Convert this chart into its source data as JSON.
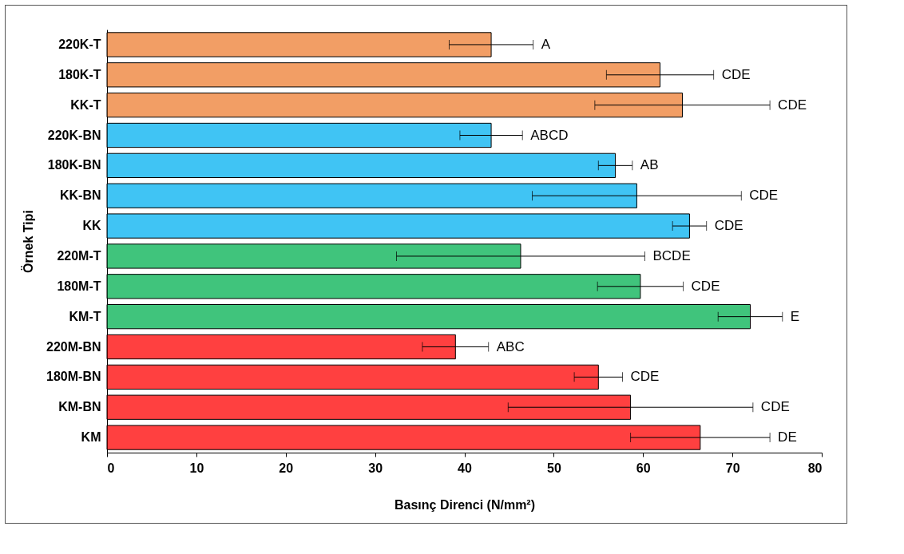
{
  "chart_data": {
    "type": "bar",
    "orientation": "horizontal",
    "xlabel": "Basınç Direnci (N/mm²)",
    "ylabel": "Örnek Tipi",
    "categories": [
      "220K-T",
      "180K-T",
      "KK-T",
      "220K-BN",
      "180K-BN",
      "KK-BN",
      "KK",
      "220M-T",
      "180M-T",
      "KM-T",
      "220M-BN",
      "180M-BN",
      "KM-BN",
      "KM"
    ],
    "values": [
      43.0,
      61.9,
      64.4,
      43.0,
      56.9,
      59.3,
      65.2,
      46.3,
      59.7,
      72.0,
      39.0,
      55.0,
      58.6,
      66.4
    ],
    "errors": [
      4.7,
      6.0,
      9.8,
      3.5,
      1.9,
      11.7,
      1.9,
      13.9,
      4.8,
      3.6,
      3.7,
      2.7,
      13.7,
      7.8
    ],
    "colors": [
      "#ed7d31",
      "#ed7d31",
      "#ed7d31",
      "#00b0f0",
      "#00b0f0",
      "#00b0f0",
      "#00b0f0",
      "#00b050",
      "#00b050",
      "#00b050",
      "#ff0000",
      "#ff0000",
      "#ff0000",
      "#ff0000"
    ],
    "xlim": [
      0,
      80
    ],
    "xticks": [
      0,
      10,
      20,
      30,
      40,
      50,
      60,
      70,
      80
    ],
    "grid": false,
    "annotations": [
      {
        "text": "A",
        "x": 47.7,
        "y": "220K-T"
      },
      {
        "text": "CDE",
        "x": 67.9,
        "y": "180K-T"
      },
      {
        "text": "CDE",
        "x": 74.2,
        "y": "KK-T"
      },
      {
        "text": "ABCD",
        "x": 46.5,
        "y": "220K-BN"
      },
      {
        "text": "AB",
        "x": 58.8,
        "y": "180K-BN"
      },
      {
        "text": "CDE",
        "x": 71.0,
        "y": "KK-BN"
      },
      {
        "text": "CDE",
        "x": 67.1,
        "y": "KK"
      },
      {
        "text": "BCDE",
        "x": 60.2,
        "y": "220M-T"
      },
      {
        "text": "CDE",
        "x": 64.5,
        "y": "180M-T"
      },
      {
        "text": "E",
        "x": 75.6,
        "y": "KM-T"
      },
      {
        "text": "ABC",
        "x": 42.7,
        "y": "220M-BN"
      },
      {
        "text": "CDE",
        "x": 57.7,
        "y": "180M-BN"
      },
      {
        "text": "CDE",
        "x": 72.3,
        "y": "KM-BN"
      },
      {
        "text": "DE",
        "x": 74.2,
        "y": "KM"
      }
    ]
  }
}
